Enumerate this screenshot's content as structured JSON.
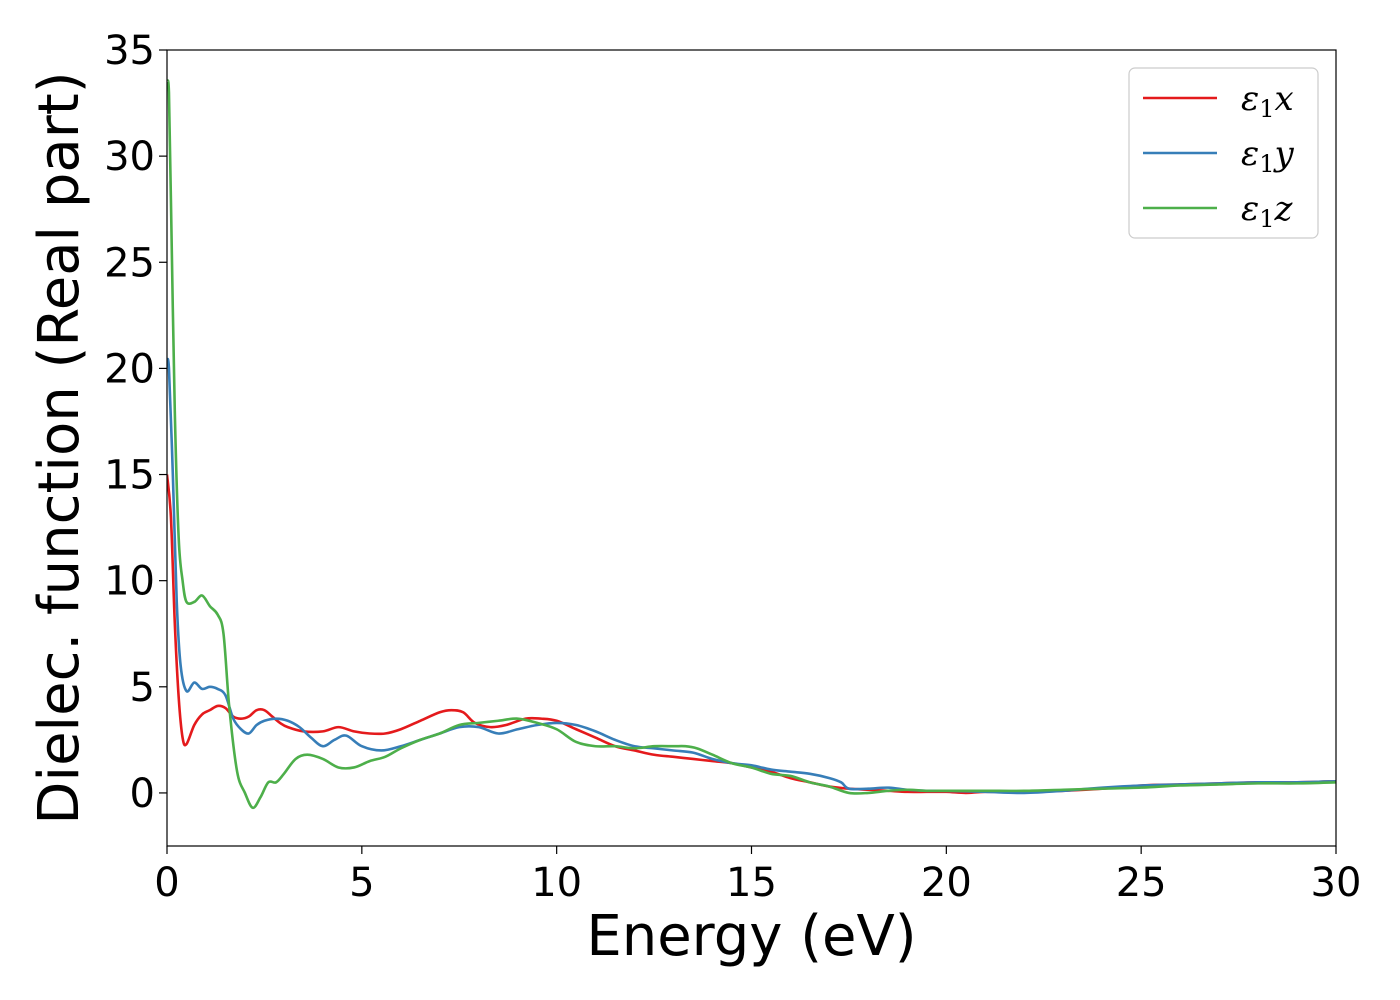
{
  "chart_data": {
    "type": "line",
    "title": "",
    "xlabel": "Energy (eV)",
    "ylabel": "Dielec. function (Real part)",
    "xlim": [
      0,
      30
    ],
    "ylim": [
      -2.5,
      35
    ],
    "xticks": [
      0,
      5,
      10,
      15,
      20,
      25,
      30
    ],
    "yticks": [
      0,
      5,
      10,
      15,
      20,
      25,
      30,
      35
    ],
    "grid": false,
    "legend_position": "top-right",
    "series": [
      {
        "name": "ε1x",
        "legend_symbol": "ε",
        "legend_sub": "1",
        "legend_var": "x",
        "color": "#e41a1c",
        "x": [
          0,
          0.1,
          0.2,
          0.3,
          0.4,
          0.5,
          0.7,
          0.9,
          1.1,
          1.3,
          1.5,
          1.7,
          1.9,
          2.1,
          2.3,
          2.5,
          2.7,
          2.9,
          3.1,
          3.5,
          4,
          4.4,
          4.8,
          5.2,
          5.6,
          6,
          6.5,
          7,
          7.3,
          7.6,
          7.9,
          8.3,
          8.7,
          9.2,
          9.6,
          10,
          10.5,
          11,
          11.5,
          12,
          12.5,
          13,
          13.5,
          14,
          14.5,
          15,
          15.5,
          16,
          16.5,
          17,
          17.5,
          18,
          18.5,
          19,
          19.5,
          20,
          20.5,
          21,
          22,
          23,
          24,
          25,
          26,
          27,
          28,
          29,
          30
        ],
        "y": [
          15,
          13,
          8,
          4.5,
          2.6,
          2.3,
          3.2,
          3.7,
          3.9,
          4.1,
          4.0,
          3.6,
          3.5,
          3.6,
          3.9,
          3.9,
          3.6,
          3.3,
          3.1,
          2.9,
          2.9,
          3.1,
          2.9,
          2.8,
          2.8,
          3.0,
          3.4,
          3.8,
          3.9,
          3.8,
          3.3,
          3.1,
          3.2,
          3.5,
          3.5,
          3.4,
          3.0,
          2.6,
          2.2,
          2.0,
          1.8,
          1.7,
          1.6,
          1.5,
          1.4,
          1.2,
          1.0,
          0.7,
          0.5,
          0.3,
          0.2,
          0.15,
          0.1,
          0.05,
          0.05,
          0.05,
          0.0,
          0.05,
          0.05,
          0.1,
          0.2,
          0.35,
          0.4,
          0.45,
          0.5,
          0.5,
          0.55
        ]
      },
      {
        "name": "ε1y",
        "legend_symbol": "ε",
        "legend_sub": "1",
        "legend_var": "y",
        "color": "#377eb8",
        "x": [
          0,
          0.05,
          0.15,
          0.25,
          0.35,
          0.5,
          0.7,
          0.9,
          1.1,
          1.3,
          1.5,
          1.7,
          1.9,
          2.1,
          2.3,
          2.5,
          2.8,
          3.1,
          3.4,
          3.7,
          4,
          4.3,
          4.6,
          5,
          5.5,
          6,
          6.5,
          7,
          7.5,
          8,
          8.5,
          9,
          9.5,
          10,
          10.5,
          11,
          11.5,
          12,
          12.5,
          13,
          13.5,
          14,
          14.5,
          15,
          15.5,
          16,
          16.5,
          17,
          17.3,
          17.5,
          18,
          18.5,
          19,
          19.5,
          20,
          21,
          22,
          23,
          24,
          25,
          26,
          27,
          28,
          29,
          30
        ],
        "y": [
          20.2,
          20,
          15,
          9,
          6,
          4.8,
          5.2,
          4.9,
          5.0,
          4.9,
          4.6,
          3.5,
          3.0,
          2.8,
          3.2,
          3.4,
          3.5,
          3.4,
          3.1,
          2.6,
          2.2,
          2.5,
          2.7,
          2.2,
          2.0,
          2.2,
          2.5,
          2.8,
          3.1,
          3.1,
          2.8,
          3.0,
          3.2,
          3.3,
          3.2,
          2.9,
          2.5,
          2.2,
          2.1,
          2.0,
          1.9,
          1.6,
          1.4,
          1.3,
          1.1,
          1.0,
          0.9,
          0.7,
          0.5,
          0.2,
          0.2,
          0.25,
          0.15,
          0.1,
          0.1,
          0.05,
          0.0,
          0.1,
          0.25,
          0.35,
          0.4,
          0.45,
          0.5,
          0.5,
          0.55
        ]
      },
      {
        "name": "ε1z",
        "legend_symbol": "ε",
        "legend_sub": "1",
        "legend_var": "z",
        "color": "#4daf4a",
        "x": [
          0,
          0.05,
          0.1,
          0.2,
          0.3,
          0.4,
          0.5,
          0.7,
          0.9,
          1.1,
          1.3,
          1.45,
          1.6,
          1.8,
          2.0,
          2.2,
          2.4,
          2.6,
          2.8,
          3.0,
          3.3,
          3.6,
          4,
          4.4,
          4.8,
          5.2,
          5.6,
          6,
          6.5,
          7,
          7.5,
          8,
          8.5,
          9,
          9.5,
          10,
          10.5,
          11,
          11.5,
          12,
          12.5,
          13,
          13.3,
          13.6,
          14,
          14.5,
          15,
          15.5,
          16,
          16.5,
          17,
          17.5,
          18,
          18.5,
          19,
          19.5,
          20,
          21,
          22,
          23,
          24,
          25,
          26,
          27,
          28,
          29,
          30
        ],
        "y": [
          33.5,
          33,
          28,
          18,
          12,
          10,
          9.0,
          9.0,
          9.3,
          8.8,
          8.4,
          7.5,
          4.0,
          1.0,
          0.0,
          -0.7,
          -0.2,
          0.5,
          0.5,
          0.9,
          1.6,
          1.8,
          1.6,
          1.2,
          1.2,
          1.5,
          1.7,
          2.1,
          2.5,
          2.8,
          3.2,
          3.3,
          3.4,
          3.5,
          3.3,
          3.0,
          2.4,
          2.2,
          2.2,
          2.1,
          2.2,
          2.2,
          2.2,
          2.1,
          1.8,
          1.4,
          1.2,
          0.9,
          0.8,
          0.5,
          0.3,
          0.0,
          0.0,
          0.1,
          0.15,
          0.1,
          0.1,
          0.1,
          0.1,
          0.15,
          0.2,
          0.25,
          0.35,
          0.4,
          0.45,
          0.45,
          0.5
        ]
      }
    ]
  }
}
